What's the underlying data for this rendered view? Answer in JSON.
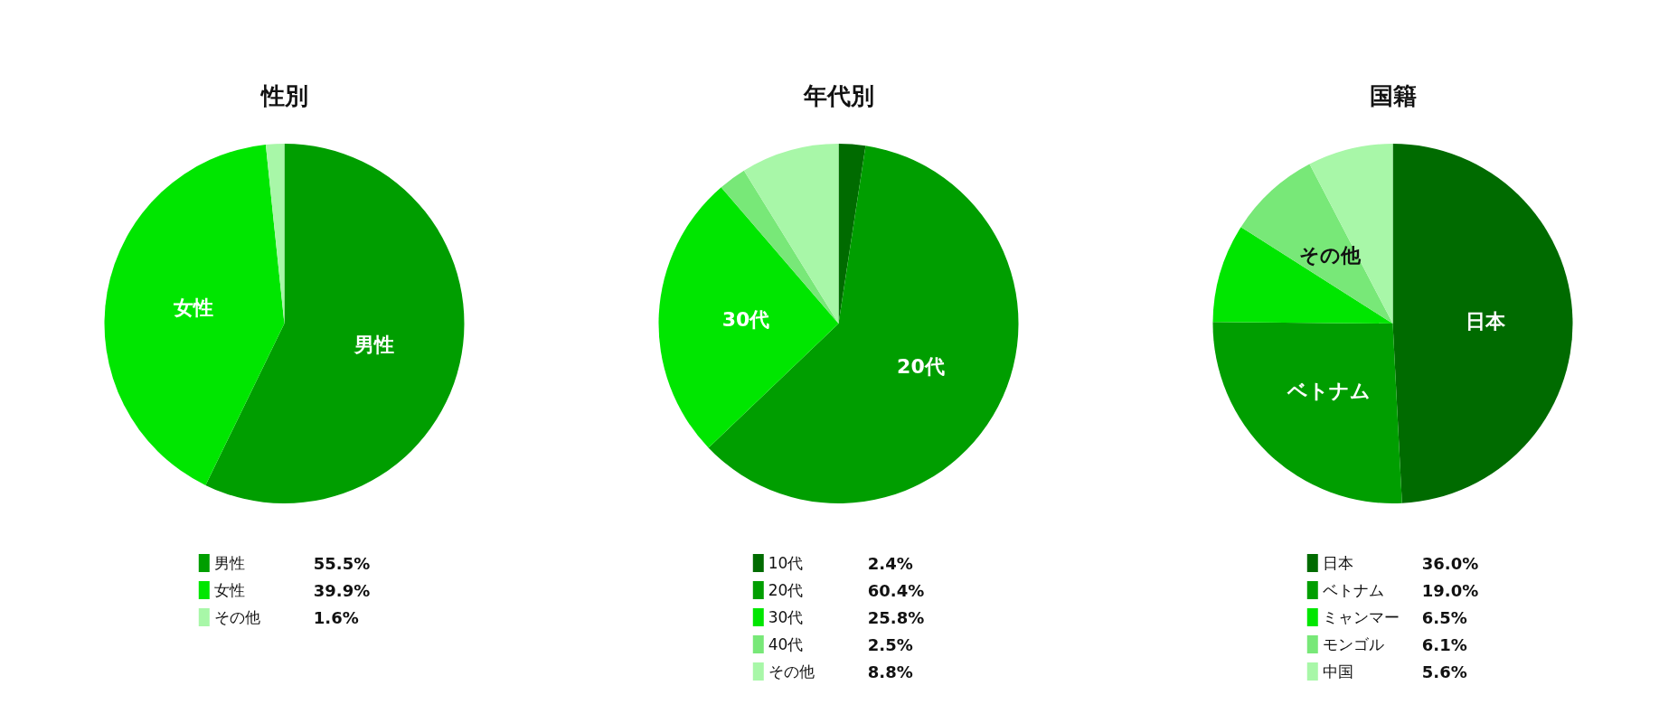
{
  "chart_data": [
    {
      "type": "pie",
      "title": "性別",
      "categories": [
        "男性",
        "女性",
        "その他"
      ],
      "values": [
        55.5,
        39.9,
        1.6
      ],
      "colors": [
        "#009e00",
        "#00e600",
        "#a8f7a8"
      ],
      "value_labels": [
        "55.5%",
        "39.9%",
        "1.6%"
      ],
      "legend": "bottom",
      "annotations": [
        {
          "text": "男性",
          "x": "男性"
        },
        {
          "text": "女性",
          "x": "女性"
        }
      ]
    },
    {
      "type": "pie",
      "title": "年代別",
      "categories": [
        "10代",
        "20代",
        "30代",
        "40代",
        "その他"
      ],
      "values": [
        2.4,
        60.4,
        25.8,
        2.5,
        8.8
      ],
      "colors": [
        "#006b00",
        "#009e00",
        "#00e600",
        "#78e878",
        "#a8f7a8"
      ],
      "value_labels": [
        "2.4%",
        "60.4%",
        "25.8%",
        "2.5%",
        "8.8%"
      ],
      "legend": "bottom",
      "annotations": [
        {
          "text": "20代",
          "x": "20代"
        },
        {
          "text": "30代",
          "x": "30代"
        }
      ]
    },
    {
      "type": "pie",
      "title": "国籍",
      "categories": [
        "日本",
        "ベトナム",
        "ミャンマー",
        "モンゴル",
        "中国"
      ],
      "values": [
        36.0,
        19.0,
        6.5,
        6.1,
        5.6
      ],
      "colors": [
        "#006b00",
        "#009e00",
        "#00e600",
        "#78e878",
        "#a8f7a8"
      ],
      "value_labels": [
        "36.0%",
        "19.0%",
        "6.5%",
        "6.1%",
        "5.6%"
      ],
      "legend": "bottom",
      "annotations": [
        {
          "text": "日本",
          "x": "日本"
        },
        {
          "text": "ベトナム",
          "x": "ベトナム"
        },
        {
          "text": "その他",
          "x": "モンゴル"
        }
      ]
    }
  ]
}
